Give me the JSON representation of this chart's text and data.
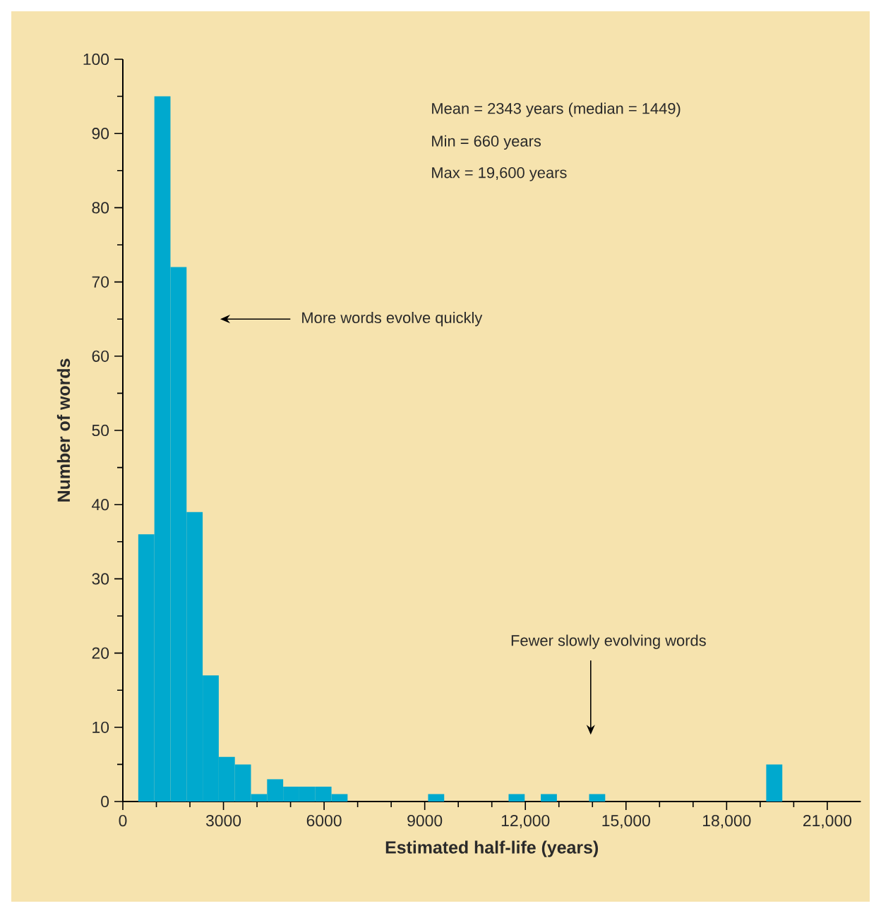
{
  "chart_data": {
    "type": "histogram",
    "xlabel": "Estimated half-life (years)",
    "ylabel": "Number of words",
    "bins": [
      460,
      940,
      1420,
      1900,
      2380,
      2860,
      3340,
      3820,
      4300,
      4780,
      5260,
      5740,
      6220,
      6700,
      7180,
      7660,
      8140,
      8620,
      9100,
      9580,
      10060,
      10540,
      11020,
      11500,
      11980,
      12460,
      12940,
      13420,
      13900,
      14380,
      14860,
      15340,
      15820,
      16300,
      16780,
      17260,
      17740,
      18220,
      18700,
      19180,
      19660
    ],
    "values": [
      36,
      95,
      72,
      39,
      17,
      6,
      5,
      1,
      3,
      2,
      2,
      2,
      1,
      0,
      0,
      0,
      0,
      0,
      1,
      0,
      0,
      0,
      0,
      1,
      0,
      1,
      0,
      0,
      1,
      0,
      0,
      0,
      0,
      0,
      0,
      0,
      0,
      0,
      0,
      5
    ],
    "color": "#00a9ce",
    "xlim": [
      0,
      22000
    ],
    "ylim": [
      0,
      100
    ],
    "xticks": [
      0,
      3000,
      6000,
      9000,
      {
        "value": 12000,
        "label": "12,000"
      },
      {
        "value": 15000,
        "label": "15,000"
      },
      {
        "value": 18000,
        "label": "18,000"
      },
      {
        "value": 21000,
        "label": "21,000"
      }
    ],
    "yticks": [
      0,
      10,
      20,
      30,
      40,
      50,
      60,
      70,
      80,
      90,
      100
    ],
    "grid": false,
    "annotations": [
      "Mean = 2343 years (median = 1449)",
      "Min = 660 years",
      "Max = 19,600 years",
      "More words evolve quickly",
      "Fewer slowly evolving words"
    ]
  }
}
